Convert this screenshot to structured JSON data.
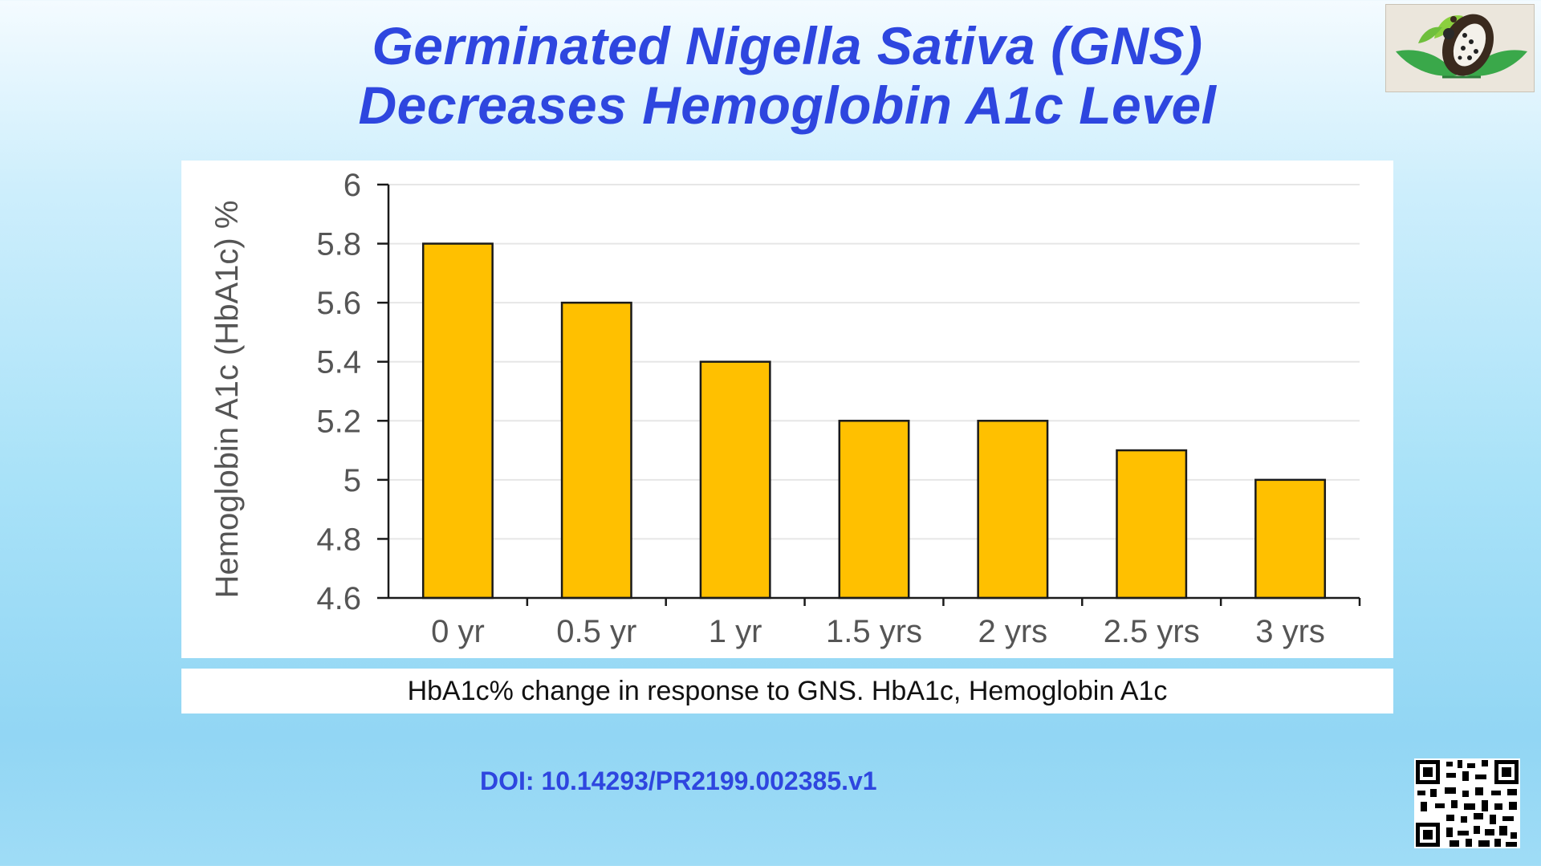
{
  "slide": {
    "title_line1": "Germinated Nigella Sativa (GNS)",
    "title_line2": "Decreases Hemoglobin A1c Level",
    "caption": "HbA1c% change in response to GNS. HbA1c, Hemoglobin A1c",
    "doi": "DOI: 10.14293/PR2199.002385.v1",
    "logo_icon": "leaf-seed-logo-icon",
    "qr_icon": "qr-code-icon",
    "colors": {
      "title": "#2e46df",
      "bar_fill": "#ffc000",
      "bar_stroke": "#1a1a1a",
      "background_top": "#f4fbff",
      "background_bottom": "#92d6f4"
    }
  },
  "chart_data": {
    "type": "bar",
    "categories": [
      "0 yr",
      "0.5 yr",
      "1 yr",
      "1.5 yrs",
      "2 yrs",
      "2.5 yrs",
      "3 yrs"
    ],
    "values": [
      5.8,
      5.6,
      5.4,
      5.2,
      5.2,
      5.1,
      5.0
    ],
    "title": "",
    "xlabel": "",
    "ylabel": "Hemoglobin A1c (HbA1c) %",
    "ylim": [
      4.6,
      6
    ],
    "yticks": [
      4.6,
      4.8,
      5,
      5.2,
      5.4,
      5.6,
      5.8,
      6
    ],
    "ytick_labels": [
      "4.6",
      "4.8",
      "5",
      "5.2",
      "5.4",
      "5.6",
      "5.8",
      "6"
    ],
    "grid": true,
    "legend": "none"
  }
}
